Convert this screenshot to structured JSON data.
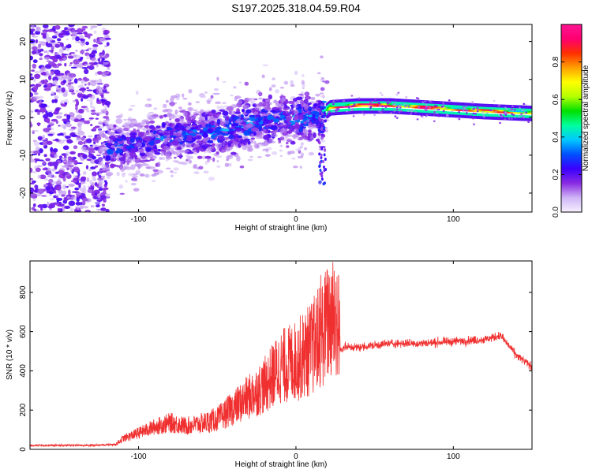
{
  "title": "S197.2025.318.04.59.R04",
  "chart_data": [
    {
      "type": "heatmap",
      "title": "S197.2025.318.04.59.R04",
      "xlabel": "Height of straight line (km)",
      "ylabel": "Frequency (Hz)",
      "xlim": [
        -169,
        150
      ],
      "ylim": [
        -25,
        24.5
      ],
      "xticks": [
        -100,
        0,
        100
      ],
      "xtick_labels": [
        "-100",
        "0",
        "100"
      ],
      "yticks": [
        -20,
        -10,
        0,
        10,
        20
      ],
      "ytick_labels": [
        "-20",
        "-10",
        "0",
        "10",
        "20"
      ],
      "colorbar": {
        "label": "Normalized spectral amplitude",
        "range": [
          0,
          1
        ],
        "ticks": [
          0.0,
          0.2,
          0.4,
          0.6,
          0.8
        ],
        "tick_labels": [
          "0.0",
          "0.2",
          "0.4",
          "0.6",
          "0.8"
        ],
        "colormap": [
          "#f7f0ff",
          "#ceb4f6",
          "#8a2be2",
          "#3a00ff",
          "#0050ff",
          "#00c8ff",
          "#00ffa0",
          "#00e000",
          "#b4ff00",
          "#ffff00",
          "#ffa000",
          "#ff3000",
          "#ff0070",
          "#ff1493"
        ]
      },
      "trend": [
        {
          "x": -120,
          "y": -8,
          "amplitude": 0.3
        },
        {
          "x": -100,
          "y": -7,
          "amplitude": 0.25
        },
        {
          "x": -80,
          "y": -5,
          "amplitude": 0.3
        },
        {
          "x": -60,
          "y": -4,
          "amplitude": 0.3
        },
        {
          "x": -40,
          "y": -3,
          "amplitude": 0.35
        },
        {
          "x": -20,
          "y": -1,
          "amplitude": 0.3
        },
        {
          "x": 0,
          "y": 0,
          "amplitude": 0.35
        },
        {
          "x": 15,
          "y": 0,
          "amplitude": 0.3
        },
        {
          "x": 22,
          "y": 2.5,
          "amplitude": 0.95
        },
        {
          "x": 40,
          "y": 3,
          "amplitude": 1.0
        },
        {
          "x": 60,
          "y": 3,
          "amplitude": 0.95
        },
        {
          "x": 80,
          "y": 2.5,
          "amplitude": 0.95
        },
        {
          "x": 100,
          "y": 2,
          "amplitude": 0.9
        },
        {
          "x": 120,
          "y": 1.5,
          "amplitude": 0.9
        },
        {
          "x": 150,
          "y": 1,
          "amplitude": 0.85
        }
      ]
    },
    {
      "type": "line",
      "xlabel": "Height of straight line (km)",
      "ylabel": "SNR (10 * v/v)",
      "xlim": [
        -169,
        150
      ],
      "ylim": [
        0,
        960
      ],
      "xticks": [
        -100,
        0,
        100
      ],
      "xtick_labels": [
        "-100",
        "0",
        "100"
      ],
      "yticks": [
        0,
        200,
        400,
        600,
        800
      ],
      "ytick_labels": [
        "0",
        "200",
        "400",
        "600",
        "800"
      ],
      "series": [
        {
          "name": "SNR",
          "color": "#f03030",
          "x": [
            -169,
            -150,
            -130,
            -115,
            -110,
            -100,
            -90,
            -80,
            -70,
            -60,
            -50,
            -40,
            -30,
            -20,
            -10,
            0,
            10,
            20,
            25,
            28,
            30,
            40,
            60,
            80,
            100,
            120,
            130,
            140,
            150
          ],
          "y": [
            20,
            20,
            20,
            25,
            60,
            90,
            120,
            140,
            120,
            130,
            150,
            200,
            250,
            300,
            380,
            400,
            450,
            550,
            600,
            500,
            520,
            520,
            540,
            540,
            550,
            560,
            580,
            480,
            420
          ]
        }
      ]
    }
  ]
}
